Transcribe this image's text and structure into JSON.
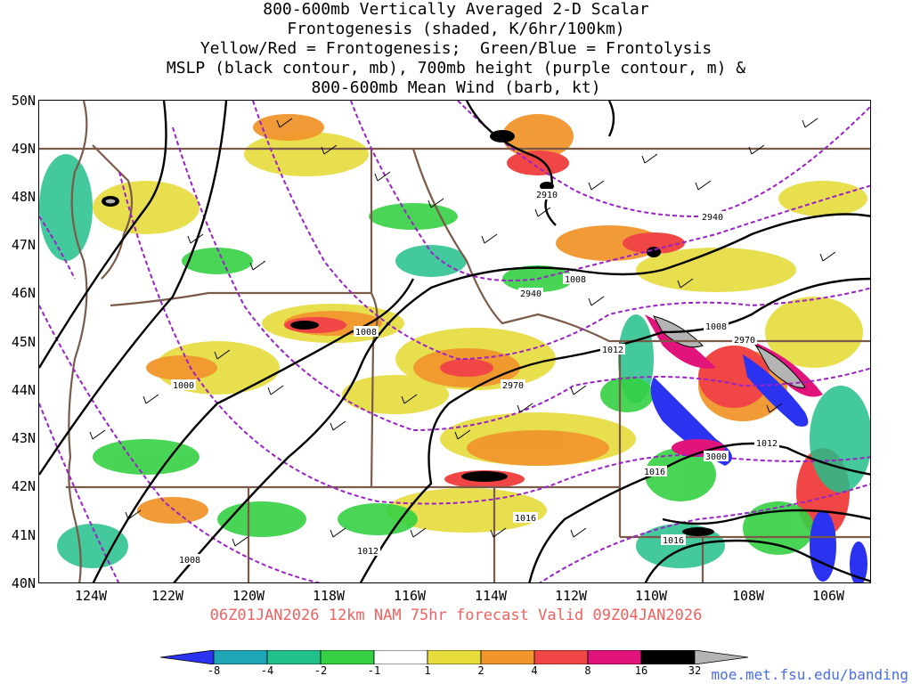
{
  "title": {
    "lines": [
      "800-600mb Vertically Averaged 2-D Scalar",
      "Frontogenesis (shaded, K/6hr/100km)",
      "Yellow/Red = Frontogenesis;  Green/Blue = Frontolysis",
      "MSLP (black contour, mb), 700mb height (purple contour, m) &",
      "800-600mb Mean Wind (barb, kt)"
    ]
  },
  "axes": {
    "lat_labels": [
      "50N",
      "49N",
      "48N",
      "47N",
      "46N",
      "45N",
      "44N",
      "43N",
      "42N",
      "41N",
      "40N"
    ],
    "lon_labels": [
      "124W",
      "122W",
      "120W",
      "118W",
      "116W",
      "114W",
      "112W",
      "110W",
      "108W",
      "106W"
    ]
  },
  "forecast": "06Z01JAN2026 12km NAM 75hr forecast Valid 09Z04JAN2026",
  "colorbar": {
    "labels": [
      "-8",
      "-4",
      "-2",
      "-1",
      "1",
      "2",
      "4",
      "8",
      "16",
      "32"
    ],
    "colors": [
      "#2b32f0",
      "#1fa6b6",
      "#22c08a",
      "#35d043",
      "#ffffff",
      "#e6dc3c",
      "#f0962d",
      "#f04646",
      "#e0147a",
      "#000000",
      "#b4b4b4"
    ]
  },
  "credit": "moe.met.fsu.edu/banding",
  "contour_labels": {
    "mslp": [
      "1000",
      "1008",
      "1008",
      "1008",
      "1008",
      "1012",
      "1012",
      "1012",
      "1016",
      "1016",
      "1016"
    ],
    "height": [
      "2910",
      "2940",
      "2940",
      "2970",
      "2970",
      "3000"
    ]
  },
  "colors": {
    "mslp": "#000000",
    "height": "#9a22c8",
    "borders": "#7a5a48"
  }
}
